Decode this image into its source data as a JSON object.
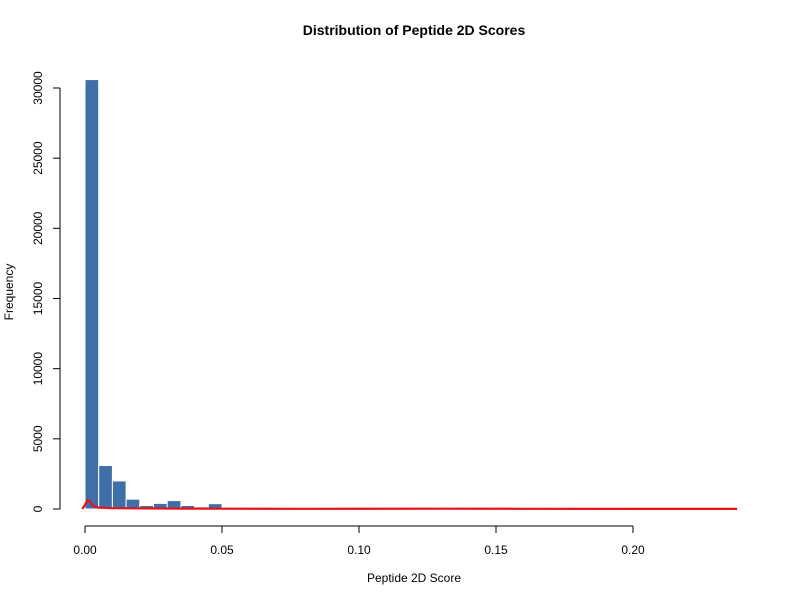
{
  "chart_data": {
    "type": "bar",
    "title": "Distribution of Peptide 2D Scores",
    "xlabel": "Peptide 2D Score",
    "ylabel": "Frequency",
    "xlim": [
      0,
      0.24
    ],
    "ylim": [
      0,
      30000
    ],
    "bin_width": 0.005,
    "x_ticks": [
      0.0,
      0.05,
      0.1,
      0.15,
      0.2
    ],
    "x_tick_labels": [
      "0.00",
      "0.05",
      "0.10",
      "0.15",
      "0.20"
    ],
    "y_ticks": [
      0,
      5000,
      10000,
      15000,
      20000,
      25000,
      30000
    ],
    "y_tick_labels": [
      "0",
      "5000",
      "10000",
      "15000",
      "20000",
      "25000",
      "30000"
    ],
    "bars": [
      {
        "x0": 0.0,
        "x1": 0.005,
        "count": 30600
      },
      {
        "x0": 0.005,
        "x1": 0.01,
        "count": 3100
      },
      {
        "x0": 0.01,
        "x1": 0.015,
        "count": 2000
      },
      {
        "x0": 0.015,
        "x1": 0.02,
        "count": 700
      },
      {
        "x0": 0.02,
        "x1": 0.025,
        "count": 250
      },
      {
        "x0": 0.025,
        "x1": 0.03,
        "count": 400
      },
      {
        "x0": 0.03,
        "x1": 0.035,
        "count": 600
      },
      {
        "x0": 0.035,
        "x1": 0.04,
        "count": 250
      },
      {
        "x0": 0.04,
        "x1": 0.045,
        "count": 150
      },
      {
        "x0": 0.045,
        "x1": 0.05,
        "count": 380
      },
      {
        "x0": 0.05,
        "x1": 0.055,
        "count": 30
      },
      {
        "x0": 0.055,
        "x1": 0.06,
        "count": 20
      },
      {
        "x0": 0.06,
        "x1": 0.065,
        "count": 15
      },
      {
        "x0": 0.065,
        "x1": 0.07,
        "count": 12
      },
      {
        "x0": 0.07,
        "x1": 0.075,
        "count": 10
      }
    ],
    "density_curve": [
      [
        -0.001,
        0
      ],
      [
        0.0,
        300
      ],
      [
        0.001,
        650
      ],
      [
        0.002,
        500
      ],
      [
        0.003,
        200
      ],
      [
        0.005,
        90
      ],
      [
        0.01,
        60
      ],
      [
        0.02,
        40
      ],
      [
        0.03,
        35
      ],
      [
        0.04,
        30
      ],
      [
        0.05,
        20
      ],
      [
        0.08,
        15
      ],
      [
        0.13,
        20
      ],
      [
        0.16,
        12
      ],
      [
        0.2,
        10
      ],
      [
        0.238,
        8
      ]
    ],
    "colors": {
      "bar_fill": "#3f6fa8",
      "bar_edge": "#ffffff",
      "density_line": "#e8111a",
      "axis": "#000000"
    },
    "grid": false,
    "legend": "none"
  }
}
